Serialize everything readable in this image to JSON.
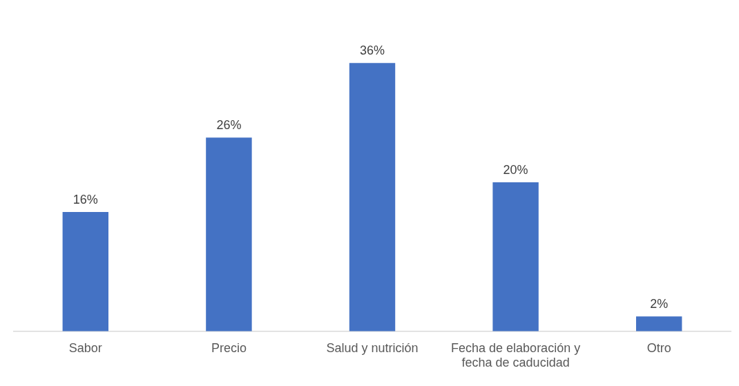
{
  "chart_data": {
    "type": "bar",
    "categories": [
      "Sabor",
      "Precio",
      "Salud y nutrición",
      "Fecha de elaboración y fecha de caducidad",
      "Otro"
    ],
    "values": [
      16,
      26,
      36,
      20,
      2
    ],
    "color": "#4472c4",
    "relative": false,
    "value_labels": [
      "16%",
      "26%",
      "36%",
      "20%",
      "2%"
    ],
    "grid": false,
    "legend": false
  }
}
